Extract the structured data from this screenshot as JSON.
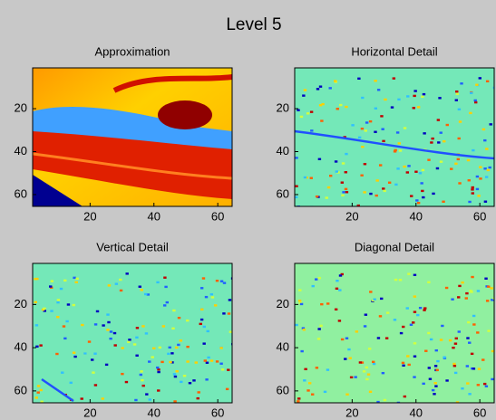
{
  "figure": {
    "title": "Level 5",
    "panels": [
      {
        "title": "Approximation",
        "xlim": [
          2,
          64.5
        ],
        "ylim": [
          1,
          65.5
        ],
        "xticks": [
          20,
          40,
          60
        ],
        "yticks": [
          20,
          40,
          60
        ]
      },
      {
        "title": "Horizontal Detail",
        "xlim": [
          2,
          64.5
        ],
        "ylim": [
          1,
          65.5
        ],
        "xticks": [
          20,
          40,
          60
        ],
        "yticks": [
          20,
          40,
          60
        ]
      },
      {
        "title": "Vertical Detail",
        "xlim": [
          2,
          64.5
        ],
        "ylim": [
          1,
          65.5
        ],
        "xticks": [
          20,
          40,
          60
        ],
        "yticks": [
          20,
          40,
          60
        ]
      },
      {
        "title": "Diagonal Detail",
        "xlim": [
          2,
          64.5
        ],
        "ylim": [
          1,
          65.5
        ],
        "xticks": [
          20,
          40,
          60
        ],
        "yticks": [
          20,
          40,
          60
        ]
      }
    ]
  }
}
